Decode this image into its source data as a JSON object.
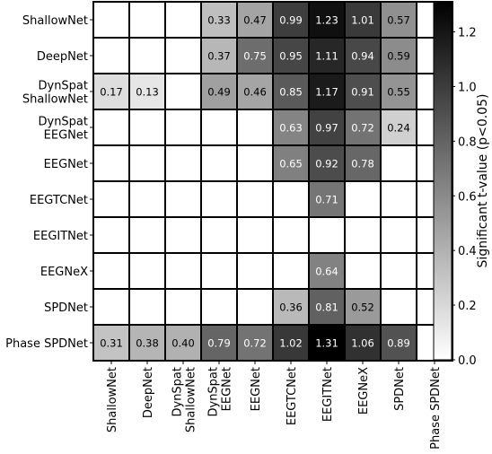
{
  "chart_data": {
    "type": "heatmap",
    "rows": [
      "ShallowNet",
      "DeepNet",
      "DynSpat ShallowNet",
      "DynSpat EEGNet",
      "EEGNet",
      "EEGTCNet",
      "EEGITNet",
      "EEGNeX",
      "SPDNet",
      "Phase SPDNet"
    ],
    "cols": [
      "ShallowNet",
      "DeepNet",
      "DynSpat ShallowNet",
      "DynSpat EEGNet",
      "EEGNet",
      "EEGTCNet",
      "EEGITNet",
      "EEGNeX",
      "SPDNet",
      "Phase SPDNet"
    ],
    "row_display": [
      [
        "ShallowNet"
      ],
      [
        "DeepNet"
      ],
      [
        "DynSpat",
        "ShallowNet"
      ],
      [
        "DynSpat",
        "EEGNet"
      ],
      [
        "EEGNet"
      ],
      [
        "EEGTCNet"
      ],
      [
        "EEGITNet"
      ],
      [
        "EEGNeX"
      ],
      [
        "SPDNet"
      ],
      [
        "Phase SPDNet"
      ]
    ],
    "col_display": [
      [
        "ShallowNet"
      ],
      [
        "DeepNet"
      ],
      [
        "DynSpat",
        "ShallowNet"
      ],
      [
        "DynSpat",
        "EEGNet"
      ],
      [
        "EEGNet"
      ],
      [
        "EEGTCNet"
      ],
      [
        "EEGITNet"
      ],
      [
        "EEGNeX"
      ],
      [
        "SPDNet"
      ],
      [
        "Phase SPDNet"
      ]
    ],
    "values": [
      [
        null,
        null,
        null,
        0.33,
        0.47,
        0.99,
        1.23,
        1.01,
        0.57,
        null
      ],
      [
        null,
        null,
        null,
        0.37,
        0.75,
        0.95,
        1.11,
        0.94,
        0.59,
        null
      ],
      [
        0.17,
        0.13,
        null,
        0.49,
        0.46,
        0.85,
        1.17,
        0.91,
        0.55,
        null
      ],
      [
        null,
        null,
        null,
        null,
        null,
        0.63,
        0.97,
        0.72,
        0.24,
        null
      ],
      [
        null,
        null,
        null,
        null,
        null,
        0.65,
        0.92,
        0.78,
        null,
        null
      ],
      [
        null,
        null,
        null,
        null,
        null,
        null,
        0.71,
        null,
        null,
        null
      ],
      [
        null,
        null,
        null,
        null,
        null,
        null,
        null,
        null,
        null,
        null
      ],
      [
        null,
        null,
        null,
        null,
        null,
        null,
        0.64,
        null,
        null,
        null
      ],
      [
        null,
        null,
        null,
        null,
        null,
        0.36,
        0.81,
        0.52,
        null,
        null
      ],
      [
        0.31,
        0.38,
        0.4,
        0.79,
        0.72,
        1.02,
        1.31,
        1.06,
        0.89,
        null
      ]
    ],
    "colorbar": {
      "label": "Significant t-value (p<0.05)",
      "min": 0.0,
      "max": 1.31,
      "ticks": [
        0.0,
        0.2,
        0.4,
        0.6,
        0.8,
        1.0,
        1.2
      ],
      "tick_labels": [
        "0.0",
        "0.2",
        "0.4",
        "0.6",
        "0.8",
        "1.0",
        "1.2"
      ],
      "colormap": "white-to-black",
      "color_low": "#ffffff",
      "color_high": "#000000"
    },
    "grid": true
  }
}
